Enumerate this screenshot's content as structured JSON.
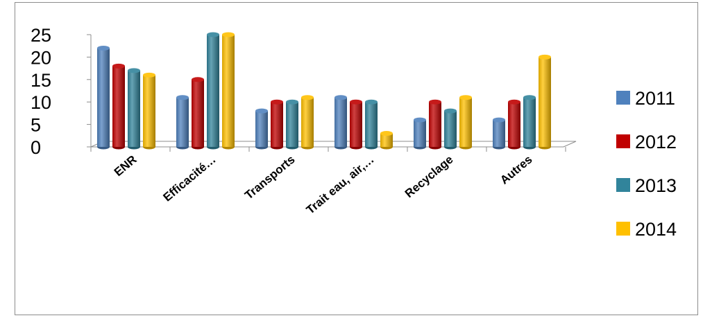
{
  "chart_data": {
    "type": "bar",
    "title": "",
    "xlabel": "",
    "ylabel": "",
    "ylim": [
      0,
      25
    ],
    "yticks": [
      0,
      5,
      10,
      15,
      20,
      25
    ],
    "categories": [
      "ENR",
      "Efficacité…",
      "Transports",
      "Trait eau, air,…",
      "Recyclage",
      "Autres"
    ],
    "series": [
      {
        "name": "2011",
        "color": "#4F81BD",
        "values": [
          22,
          11,
          8,
          11,
          6,
          6
        ]
      },
      {
        "name": "2012",
        "color": "#C00000",
        "values": [
          18,
          15,
          10,
          10,
          10,
          10
        ]
      },
      {
        "name": "2013",
        "color": "#31849B",
        "values": [
          17,
          25,
          10,
          10,
          8,
          11
        ]
      },
      {
        "name": "2014",
        "color": "#FFC000",
        "values": [
          16,
          25,
          11,
          3,
          11,
          20
        ]
      }
    ],
    "grid": false,
    "legend": "right",
    "style": "3d-cylinder"
  }
}
